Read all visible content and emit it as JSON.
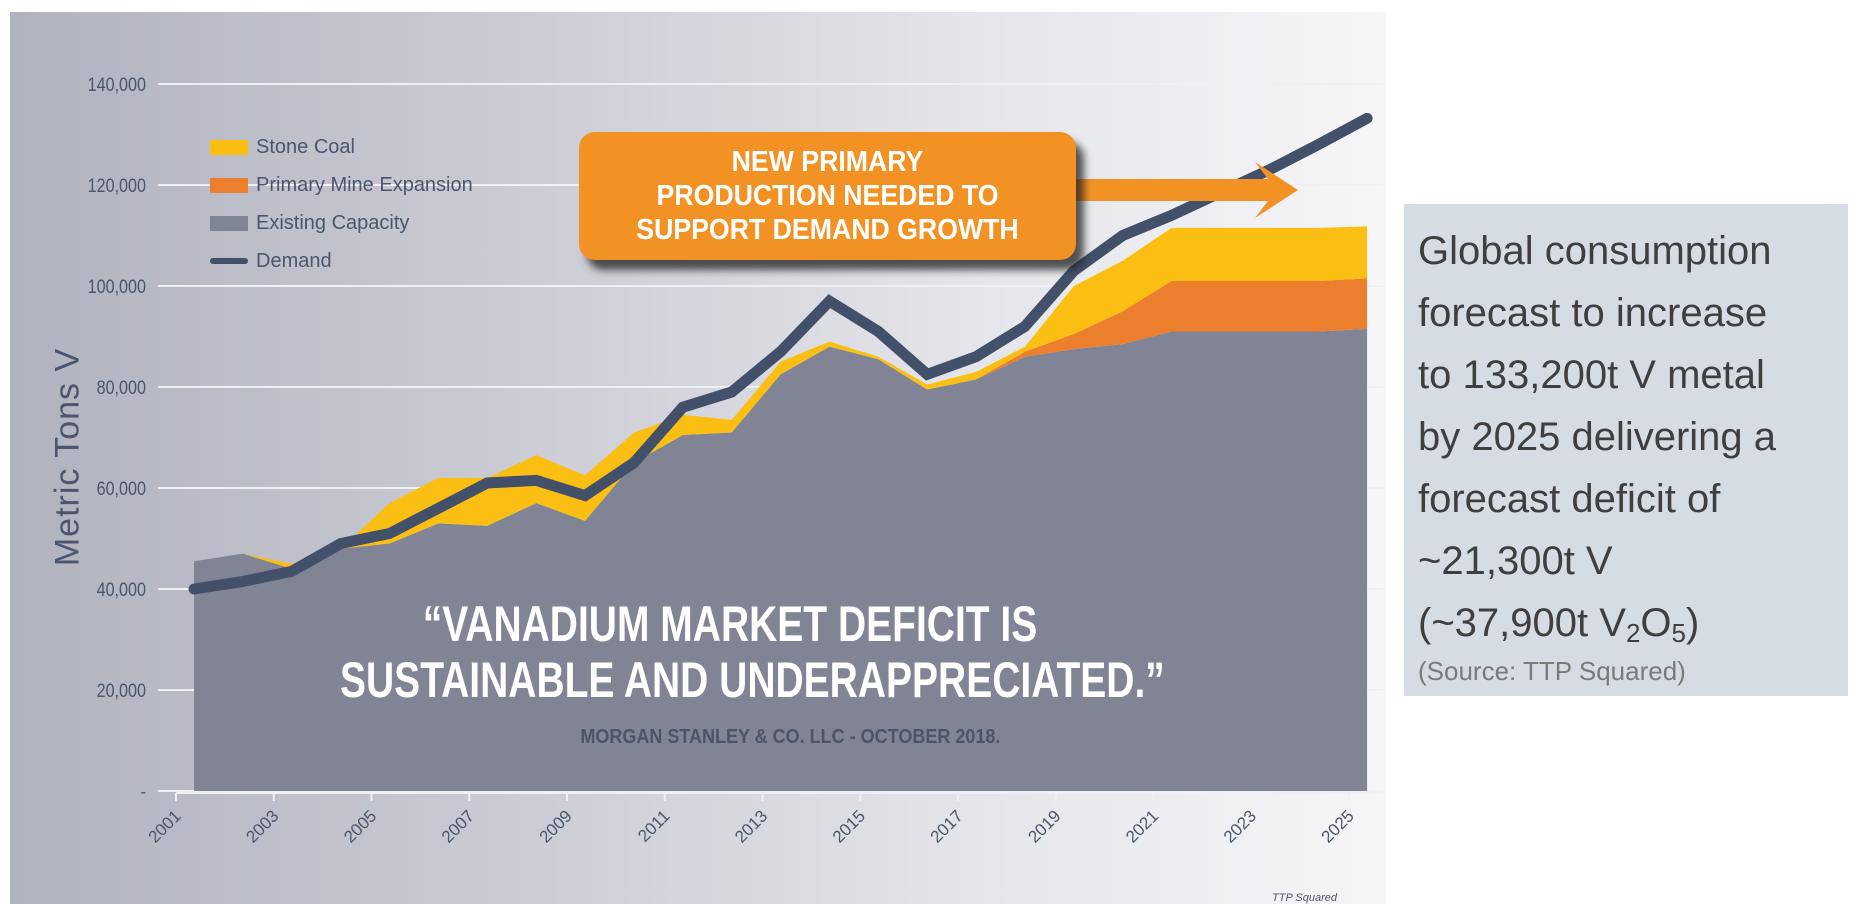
{
  "chart_data": {
    "type": "area",
    "stacked": true,
    "ylabel": "Metric Tons V",
    "xlabel": "",
    "ylim": [
      0,
      140000
    ],
    "yticks": [
      0,
      20000,
      40000,
      60000,
      80000,
      100000,
      120000,
      140000
    ],
    "ytick_labels": [
      "-",
      "20,000",
      "40,000",
      "60,000",
      "80,000",
      "100,000",
      "120,000",
      "140,000"
    ],
    "xtick_labels": [
      "2001",
      "2003",
      "2005",
      "2007",
      "2009",
      "2011",
      "2013",
      "2015",
      "2017",
      "2019",
      "2021",
      "2023",
      "2025"
    ],
    "grid": true,
    "legend_position": "top-left",
    "x": [
      2001,
      2002,
      2003,
      2004,
      2005,
      2006,
      2007,
      2008,
      2009,
      2010,
      2011,
      2012,
      2013,
      2014,
      2015,
      2016,
      2017,
      2018,
      2019,
      2020,
      2021,
      2022,
      2023,
      2024,
      2025
    ],
    "series": [
      {
        "name": "Existing Capacity",
        "kind": "area",
        "color": "#808495",
        "values": [
          45500,
          47000,
          44000,
          48000,
          49000,
          53000,
          52500,
          57000,
          53500,
          65000,
          70500,
          71000,
          82500,
          88000,
          85500,
          79500,
          81500,
          86000,
          87500,
          88500,
          91000,
          91000,
          91000,
          91000,
          91500
        ]
      },
      {
        "name": "Primary Mine Expansion",
        "kind": "area",
        "color": "#ec7f2e",
        "values": [
          0,
          0,
          0,
          0,
          0,
          0,
          0,
          0,
          0,
          0,
          0,
          0,
          0,
          0,
          0,
          0,
          0,
          1000,
          3000,
          6500,
          10000,
          10000,
          10000,
          10000,
          10000
        ]
      },
      {
        "name": "Stone Coal",
        "kind": "area",
        "color": "#fbbf14",
        "values": [
          0,
          0,
          1000,
          0,
          8000,
          9000,
          9500,
          9500,
          9000,
          6000,
          4000,
          2500,
          2500,
          1000,
          500,
          1000,
          1500,
          1000,
          9500,
          10000,
          10500,
          10500,
          10500,
          10500,
          10300
        ]
      },
      {
        "name": "Demand",
        "kind": "line",
        "color": "#435069",
        "values": [
          40000,
          41500,
          43500,
          49000,
          51000,
          56000,
          61000,
          61500,
          58500,
          65000,
          76000,
          79000,
          87000,
          97000,
          91000,
          82500,
          86000,
          92000,
          103000,
          110000,
          114000,
          118500,
          123000,
          128000,
          133200
        ]
      }
    ],
    "legend_order": [
      "Stone Coal",
      "Primary Mine Expansion",
      "Existing Capacity",
      "Demand"
    ],
    "annotations": {
      "callout": [
        "NEW PRIMARY",
        "PRODUCTION NEEDED TO",
        "SUPPORT DEMAND GROWTH"
      ],
      "callout_color": "#f39224",
      "quote": [
        "“VANADIUM MARKET DEFICIT IS",
        "SUSTAINABLE AND UNDERAPPRECIATED.”"
      ],
      "attribution": "MORGAN STANLEY & CO. LLC - OCTOBER 2018.",
      "source": "TTP Squared"
    }
  },
  "info_box": {
    "lines": [
      "Global consumption",
      "forecast to increase",
      "to 133,200t V metal",
      "by 2025 delivering a",
      "forecast deficit of",
      "~21,300t V"
    ],
    "formula_prefix": "(~37,900t V",
    "formula_sub1": "2",
    "formula_mid": "O",
    "formula_sub2": "5",
    "formula_suffix": ")",
    "source": "(Source:  TTP Squared)"
  }
}
